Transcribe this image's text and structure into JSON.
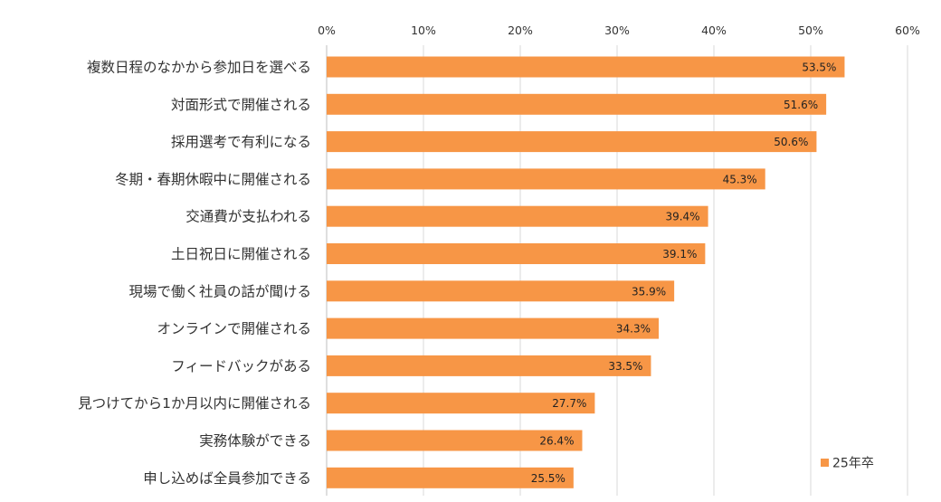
{
  "chart_data": {
    "type": "bar",
    "orientation": "horizontal",
    "categories": [
      "複数日程のなかから参加日を選べる",
      "対面形式で開催される",
      "採用選考で有利になる",
      "冬期・春期休暇中に開催される",
      "交通費が支払われる",
      "土日祝日に開催される",
      "現場で働く社員の話が聞ける",
      "オンラインで開催される",
      "フィードバックがある",
      "見つけてから1か月以内に開催される",
      "実務体験ができる",
      "申し込めば全員参加できる"
    ],
    "series": [
      {
        "name": "25年卒",
        "color": "#f79646",
        "values": [
          53.5,
          51.6,
          50.6,
          45.3,
          39.4,
          39.1,
          35.9,
          34.3,
          33.5,
          27.7,
          26.4,
          25.5
        ],
        "labels": [
          "53.5%",
          "51.6%",
          "50.6%",
          "45.3%",
          "39.4%",
          "39.1%",
          "35.9%",
          "34.3%",
          "33.5%",
          "27.7%",
          "26.4%",
          "25.5%"
        ]
      }
    ],
    "xlim": [
      0,
      60
    ],
    "x_ticks": [
      "0%",
      "10%",
      "20%",
      "30%",
      "40%",
      "50%",
      "60%"
    ],
    "x_axis_position": "top",
    "grid": true,
    "legend_position": "bottom-right"
  }
}
